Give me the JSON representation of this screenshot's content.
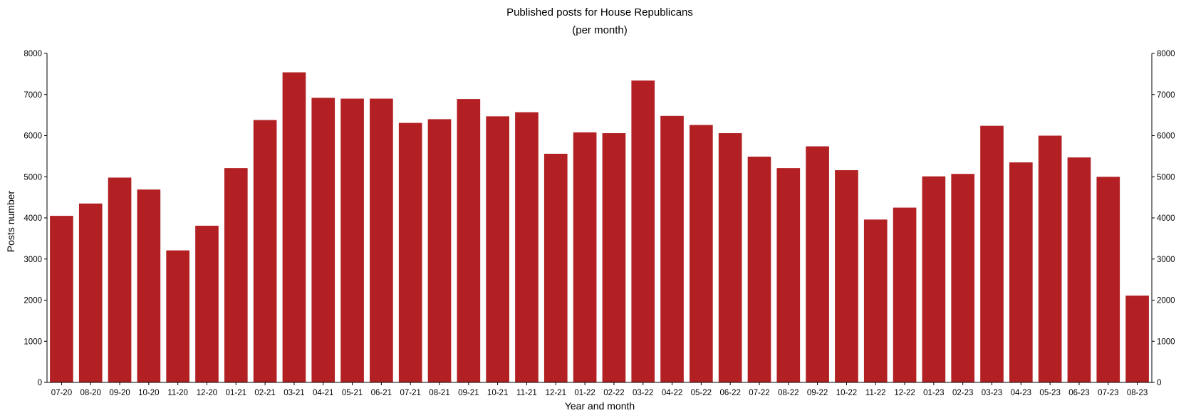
{
  "chart_data": {
    "type": "bar",
    "title": "Published posts for House Republicans",
    "subtitle": "(per month)",
    "xlabel": "Year and month",
    "ylabel": "Posts number",
    "ylim": [
      0,
      8000
    ],
    "yticks": [
      0,
      1000,
      2000,
      3000,
      4000,
      5000,
      6000,
      7000,
      8000
    ],
    "grid": false,
    "right_axis": true,
    "bar_color": "#b22023",
    "categories": [
      "07-20",
      "08-20",
      "09-20",
      "10-20",
      "11-20",
      "12-20",
      "01-21",
      "02-21",
      "03-21",
      "04-21",
      "05-21",
      "06-21",
      "07-21",
      "08-21",
      "09-21",
      "10-21",
      "11-21",
      "12-21",
      "01-22",
      "02-22",
      "03-22",
      "04-22",
      "05-22",
      "06-22",
      "07-22",
      "08-22",
      "09-22",
      "10-22",
      "11-22",
      "12-22",
      "01-23",
      "02-23",
      "03-23",
      "04-23",
      "05-23",
      "06-23",
      "07-23",
      "08-23"
    ],
    "values": [
      4050,
      4350,
      4980,
      4690,
      3210,
      3810,
      5210,
      6380,
      7540,
      6920,
      6900,
      6900,
      6310,
      6400,
      6890,
      6470,
      6570,
      5560,
      6080,
      6060,
      7340,
      6480,
      6260,
      6060,
      5490,
      5210,
      5740,
      5160,
      3960,
      4250,
      5010,
      5070,
      6240,
      5350,
      6000,
      5470,
      5000,
      2110
    ]
  }
}
